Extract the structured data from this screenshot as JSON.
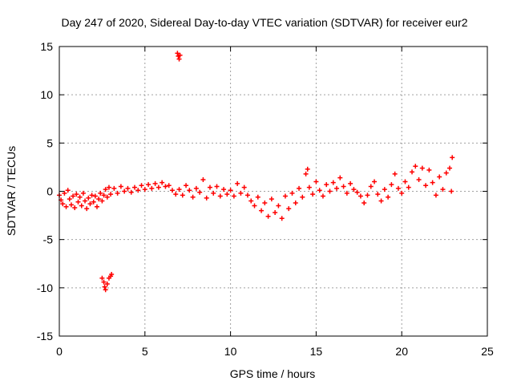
{
  "chart_data": {
    "type": "scatter",
    "title": "Day 247 of 2020, Sidereal Day-to-day VTEC variation (SDTVAR) for receiver eur2",
    "xlabel": "GPS time / hours",
    "ylabel": "SDTVAR / TECUs",
    "xlim": [
      0,
      25
    ],
    "ylim": [
      -15,
      15
    ],
    "xticks": [
      0,
      5,
      10,
      15,
      20,
      25
    ],
    "yticks": [
      -15,
      -10,
      -5,
      0,
      5,
      10,
      15
    ],
    "xtick_labels": [
      "0",
      "5",
      "10",
      "15",
      "20",
      "25"
    ],
    "ytick_labels": [
      "-15",
      "-10",
      "-5",
      "0",
      "5",
      "10",
      "15"
    ],
    "grid": true,
    "marker": "+",
    "marker_color": "#ff0000",
    "series": [
      {
        "name": "eur2",
        "points": [
          [
            0.0,
            -0.4
          ],
          [
            0.1,
            -0.9
          ],
          [
            0.2,
            -1.3
          ],
          [
            0.3,
            -0.2
          ],
          [
            0.4,
            -1.6
          ],
          [
            0.5,
            0.1
          ],
          [
            0.6,
            -0.8
          ],
          [
            0.7,
            -1.4
          ],
          [
            0.8,
            -0.5
          ],
          [
            0.9,
            -1.7
          ],
          [
            1.0,
            -0.3
          ],
          [
            1.1,
            -1.1
          ],
          [
            1.2,
            -0.6
          ],
          [
            1.3,
            -1.5
          ],
          [
            1.4,
            -0.2
          ],
          [
            1.5,
            -1.0
          ],
          [
            1.6,
            -1.8
          ],
          [
            1.7,
            -0.7
          ],
          [
            1.8,
            -1.3
          ],
          [
            1.9,
            -0.4
          ],
          [
            2.0,
            -1.1
          ],
          [
            2.1,
            -0.5
          ],
          [
            2.2,
            -1.6
          ],
          [
            2.3,
            -0.8
          ],
          [
            2.4,
            -0.2
          ],
          [
            2.5,
            -1.0
          ],
          [
            2.6,
            -0.4
          ],
          [
            2.7,
            0.2
          ],
          [
            2.8,
            -0.6
          ],
          [
            2.9,
            0.4
          ],
          [
            3.0,
            -0.3
          ],
          [
            3.2,
            0.3
          ],
          [
            3.4,
            -0.2
          ],
          [
            3.6,
            0.5
          ],
          [
            3.8,
            0.0
          ],
          [
            4.0,
            0.3
          ],
          [
            4.2,
            -0.1
          ],
          [
            4.4,
            0.4
          ],
          [
            4.6,
            0.1
          ],
          [
            4.8,
            0.6
          ],
          [
            5.0,
            0.2
          ],
          [
            5.2,
            0.7
          ],
          [
            5.4,
            0.3
          ],
          [
            5.6,
            0.8
          ],
          [
            5.8,
            0.4
          ],
          [
            6.0,
            0.9
          ],
          [
            6.2,
            0.5
          ],
          [
            6.4,
            0.6
          ],
          [
            6.6,
            0.1
          ],
          [
            6.8,
            -0.3
          ],
          [
            7.0,
            0.2
          ],
          [
            7.2,
            -0.4
          ],
          [
            7.4,
            0.6
          ],
          [
            7.6,
            0.1
          ],
          [
            7.8,
            -0.6
          ],
          [
            8.0,
            0.3
          ],
          [
            8.2,
            -0.1
          ],
          [
            8.4,
            1.2
          ],
          [
            8.6,
            -0.7
          ],
          [
            8.8,
            0.4
          ],
          [
            9.0,
            -0.2
          ],
          [
            9.2,
            0.5
          ],
          [
            9.4,
            -0.5
          ],
          [
            9.6,
            0.2
          ],
          [
            9.8,
            -0.3
          ],
          [
            10.0,
            0.1
          ],
          [
            10.2,
            -0.5
          ],
          [
            10.4,
            0.8
          ],
          [
            10.6,
            -0.2
          ],
          [
            10.8,
            0.4
          ],
          [
            11.0,
            -0.4
          ],
          [
            11.2,
            -1.0
          ],
          [
            11.4,
            -1.5
          ],
          [
            11.6,
            -0.6
          ],
          [
            11.8,
            -2.0
          ],
          [
            12.0,
            -1.2
          ],
          [
            12.2,
            -2.6
          ],
          [
            12.4,
            -0.8
          ],
          [
            12.6,
            -2.2
          ],
          [
            12.8,
            -1.5
          ],
          [
            13.0,
            -2.8
          ],
          [
            13.2,
            -0.5
          ],
          [
            13.4,
            -1.8
          ],
          [
            13.6,
            -0.2
          ],
          [
            13.8,
            -1.2
          ],
          [
            14.0,
            0.3
          ],
          [
            14.2,
            -0.6
          ],
          [
            14.4,
            1.8
          ],
          [
            14.5,
            2.3
          ],
          [
            14.6,
            0.4
          ],
          [
            14.8,
            -0.3
          ],
          [
            15.0,
            1.0
          ],
          [
            15.2,
            0.1
          ],
          [
            15.4,
            -0.5
          ],
          [
            15.6,
            0.7
          ],
          [
            15.8,
            0.0
          ],
          [
            16.0,
            0.9
          ],
          [
            16.2,
            0.3
          ],
          [
            16.4,
            1.4
          ],
          [
            16.6,
            0.5
          ],
          [
            16.8,
            -0.2
          ],
          [
            17.0,
            0.8
          ],
          [
            17.2,
            0.2
          ],
          [
            17.4,
            -0.1
          ],
          [
            17.6,
            -0.5
          ],
          [
            17.8,
            -1.2
          ],
          [
            18.0,
            -0.4
          ],
          [
            18.2,
            0.5
          ],
          [
            18.4,
            1.0
          ],
          [
            18.6,
            -0.3
          ],
          [
            18.8,
            -1.0
          ],
          [
            19.0,
            0.2
          ],
          [
            19.2,
            -0.6
          ],
          [
            19.4,
            0.7
          ],
          [
            19.6,
            1.8
          ],
          [
            19.8,
            0.3
          ],
          [
            20.0,
            -0.2
          ],
          [
            20.2,
            1.0
          ],
          [
            20.4,
            0.4
          ],
          [
            20.6,
            2.0
          ],
          [
            20.8,
            2.6
          ],
          [
            21.0,
            1.2
          ],
          [
            21.2,
            2.4
          ],
          [
            21.4,
            0.6
          ],
          [
            21.6,
            2.2
          ],
          [
            21.8,
            0.9
          ],
          [
            22.0,
            -0.4
          ],
          [
            22.2,
            1.5
          ],
          [
            22.4,
            0.2
          ],
          [
            22.6,
            1.9
          ],
          [
            22.8,
            2.4
          ],
          [
            22.9,
            0.0
          ],
          [
            22.95,
            3.5
          ],
          [
            2.5,
            -9.0
          ],
          [
            2.6,
            -9.4
          ],
          [
            2.65,
            -9.9
          ],
          [
            2.7,
            -10.2
          ],
          [
            2.8,
            -9.6
          ],
          [
            2.9,
            -9.0
          ],
          [
            3.0,
            -8.8
          ],
          [
            3.05,
            -8.6
          ],
          [
            6.9,
            14.3
          ],
          [
            6.95,
            14.0
          ],
          [
            7.0,
            13.7
          ],
          [
            7.05,
            14.1
          ]
        ]
      }
    ]
  }
}
